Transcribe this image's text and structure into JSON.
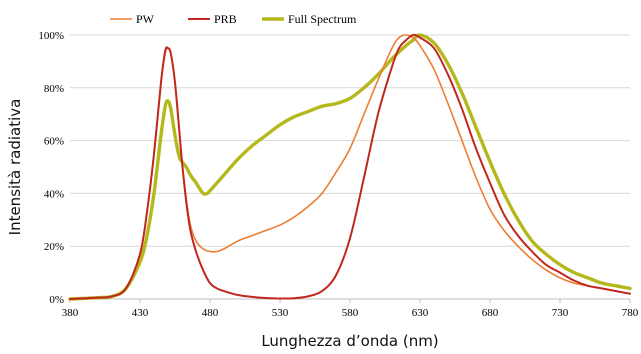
{
  "chart_data": {
    "type": "line",
    "xlabel": "Lunghezza d’onda (nm)",
    "ylabel": "Intensità radiativa",
    "xlim": [
      380,
      780
    ],
    "ylim": [
      0,
      100
    ],
    "x_ticks": [
      "380",
      "430",
      "480",
      "530",
      "580",
      "630",
      "680",
      "730",
      "780"
    ],
    "y_ticks": [
      "0%",
      "20%",
      "40%",
      "60%",
      "80%",
      "100%"
    ],
    "grid": "horizontal",
    "legend_position": "top",
    "series": [
      {
        "name": "PW",
        "color": "#ED7D31",
        "x": [
          380,
          400,
          410,
          420,
          430,
          435,
          440,
          445,
          448,
          450,
          452,
          455,
          458,
          460,
          463,
          466,
          470,
          475,
          480,
          485,
          490,
          500,
          510,
          520,
          530,
          540,
          550,
          560,
          570,
          580,
          590,
          600,
          610,
          615,
          620,
          625,
          630,
          640,
          650,
          660,
          670,
          680,
          690,
          700,
          710,
          720,
          730,
          740,
          750,
          760,
          770,
          780
        ],
        "y": [
          0,
          0.5,
          1,
          4,
          17,
          33,
          55,
          82,
          93,
          95,
          93,
          82,
          65,
          52,
          38,
          28,
          22,
          19,
          18,
          18,
          19,
          22,
          24,
          26,
          28,
          31,
          35,
          40,
          48,
          57,
          70,
          83,
          95,
          99,
          100,
          99,
          96,
          87,
          74,
          60,
          46,
          34,
          26,
          20,
          15,
          11,
          8,
          6,
          5,
          4,
          3,
          2
        ]
      },
      {
        "name": "PRB",
        "color": "#C0281E",
        "x": [
          380,
          400,
          410,
          420,
          430,
          435,
          440,
          445,
          448,
          450,
          452,
          455,
          458,
          460,
          463,
          466,
          470,
          475,
          480,
          485,
          490,
          500,
          510,
          520,
          530,
          540,
          550,
          560,
          570,
          580,
          590,
          600,
          610,
          615,
          620,
          625,
          630,
          640,
          650,
          660,
          670,
          680,
          690,
          700,
          710,
          720,
          730,
          740,
          750,
          760,
          770,
          780
        ],
        "y": [
          0,
          0.5,
          1,
          4,
          17,
          33,
          55,
          82,
          94,
          95,
          93,
          82,
          64,
          52,
          37,
          26,
          18,
          11,
          6,
          4,
          3,
          1.5,
          0.8,
          0.4,
          0.2,
          0.3,
          1,
          3,
          9,
          23,
          46,
          70,
          88,
          95,
          98,
          100,
          99,
          95,
          85,
          72,
          57,
          44,
          32,
          24,
          18,
          13,
          10,
          7,
          5,
          4,
          3,
          2
        ]
      },
      {
        "name": "Full Spectrum",
        "color": "#B5B81C",
        "x": [
          380,
          400,
          410,
          420,
          430,
          435,
          440,
          445,
          448,
          450,
          452,
          455,
          458,
          460,
          463,
          466,
          470,
          475,
          478,
          480,
          485,
          490,
          500,
          510,
          520,
          530,
          540,
          550,
          560,
          570,
          580,
          590,
          600,
          610,
          620,
          625,
          630,
          640,
          650,
          660,
          670,
          680,
          690,
          700,
          710,
          720,
          730,
          740,
          750,
          760,
          770,
          780
        ],
        "y": [
          0,
          0.5,
          1,
          4,
          14,
          24,
          40,
          62,
          73,
          75,
          72,
          62,
          54,
          52,
          50,
          47,
          44,
          40,
          40,
          41,
          44,
          47,
          53,
          58,
          62,
          66,
          69,
          71,
          73,
          74,
          76,
          80,
          85,
          91,
          96,
          98,
          100,
          97,
          89,
          78,
          65,
          52,
          40,
          30,
          22,
          17,
          13,
          10,
          8,
          6,
          5,
          4
        ]
      }
    ]
  }
}
